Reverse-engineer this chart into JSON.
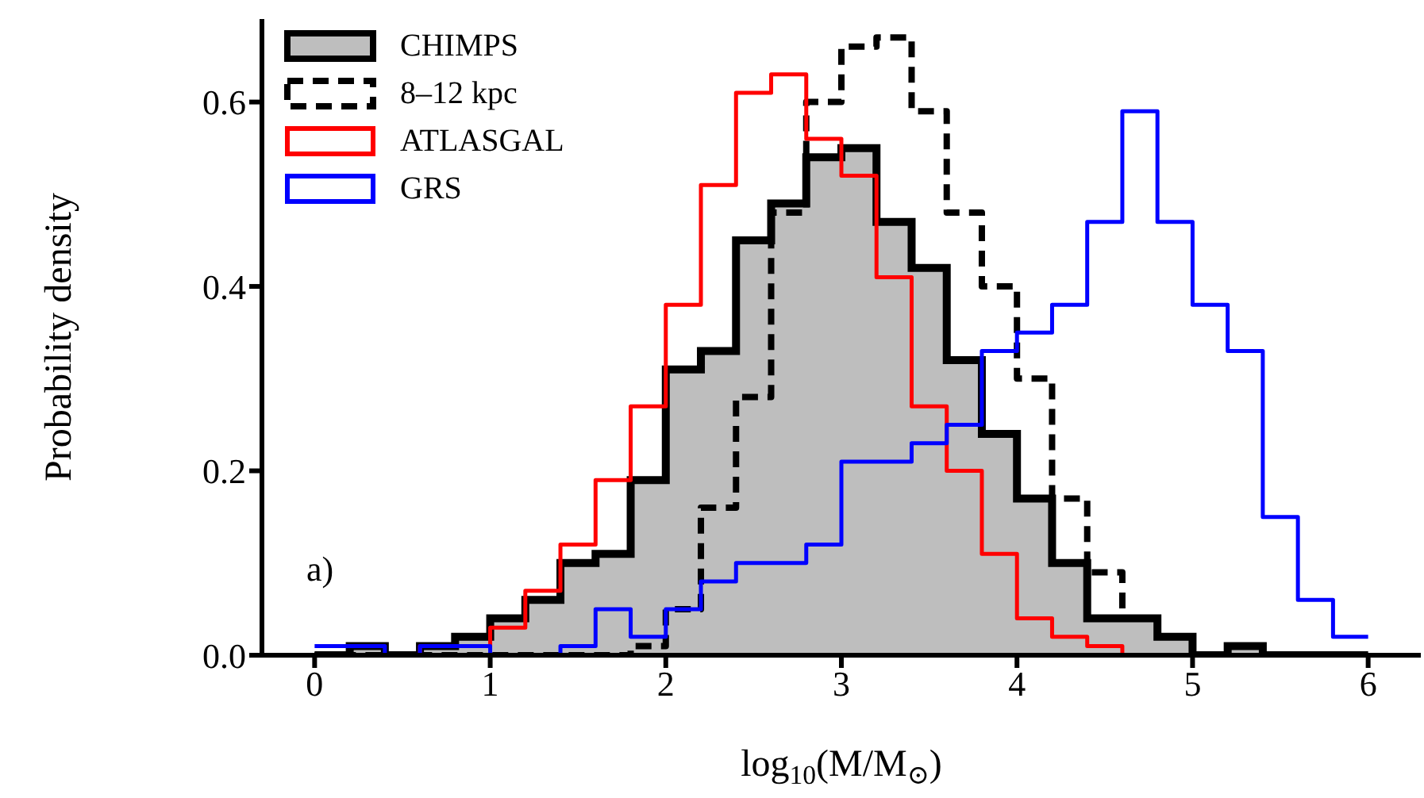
{
  "chart_data": {
    "type": "histogram",
    "xlabel": "log$_{10}$(M/M$_{⊙}$)",
    "ylabel": "Probability density",
    "annotations": [
      "a)"
    ],
    "bins": [
      0,
      0.2,
      0.4,
      0.6,
      0.8,
      1,
      1.2,
      1.4,
      1.6,
      1.8,
      2,
      2.2,
      2.4,
      2.6,
      2.8,
      3,
      3.2,
      3.4,
      3.6,
      3.8,
      4,
      4.2,
      4.4,
      4.6,
      4.8,
      5,
      5.2,
      5.4,
      5.6,
      5.8,
      6
    ],
    "series": [
      {
        "name": "CHIMPS",
        "color": "#bebebe",
        "values": [
          0,
          0.01,
          0,
          0.01,
          0.02,
          0.04,
          0.06,
          0.1,
          0.11,
          0.19,
          0.31,
          0.33,
          0.45,
          0.49,
          0.54,
          0.55,
          0.47,
          0.42,
          0.32,
          0.24,
          0.17,
          0.1,
          0.04,
          0.04,
          0.02,
          0,
          0.01,
          0,
          0,
          0
        ]
      },
      {
        "name": "8–12 kpc",
        "color": "#000000",
        "line_style": "dashed",
        "values": [
          0,
          0,
          0,
          0,
          0,
          0,
          0,
          0,
          0,
          0.01,
          0.05,
          0.16,
          0.28,
          0.48,
          0.6,
          0.66,
          0.67,
          0.59,
          0.48,
          0.4,
          0.3,
          0.17,
          0.09,
          0.04,
          0.02,
          0,
          0.01,
          0,
          0,
          0
        ]
      },
      {
        "name": "ATLASGAL",
        "color": "#ff0000",
        "values": [
          0,
          0,
          0,
          0.01,
          0.01,
          0.03,
          0.07,
          0.12,
          0.19,
          0.27,
          0.38,
          0.51,
          0.61,
          0.63,
          0.56,
          0.52,
          0.41,
          0.27,
          0.2,
          0.11,
          0.04,
          0.02,
          0.01,
          0,
          0,
          0,
          0,
          0,
          0,
          0
        ]
      },
      {
        "name": "GRS",
        "color": "#0000ff",
        "values": [
          0.01,
          0.01,
          0,
          0.01,
          0.01,
          0,
          0,
          0.01,
          0.05,
          0.02,
          0.05,
          0.08,
          0.1,
          0.1,
          0.12,
          0.21,
          0.21,
          0.23,
          0.25,
          0.33,
          0.35,
          0.38,
          0.47,
          0.59,
          0.47,
          0.38,
          0.33,
          0.15,
          0.06,
          0.02
        ]
      }
    ],
    "xlim": [
      -0.3,
      6.3
    ],
    "ylim": [
      0,
      0.69
    ],
    "xticks": [
      0,
      1,
      2,
      3,
      4,
      5,
      6
    ],
    "yticks": [
      {
        "value": 0,
        "label": "0.0"
      },
      {
        "value": 0.2,
        "label": "0.2"
      },
      {
        "value": 0.4,
        "label": "0.4"
      },
      {
        "value": 0.6,
        "label": "0.6"
      }
    ],
    "legend": "top left"
  }
}
